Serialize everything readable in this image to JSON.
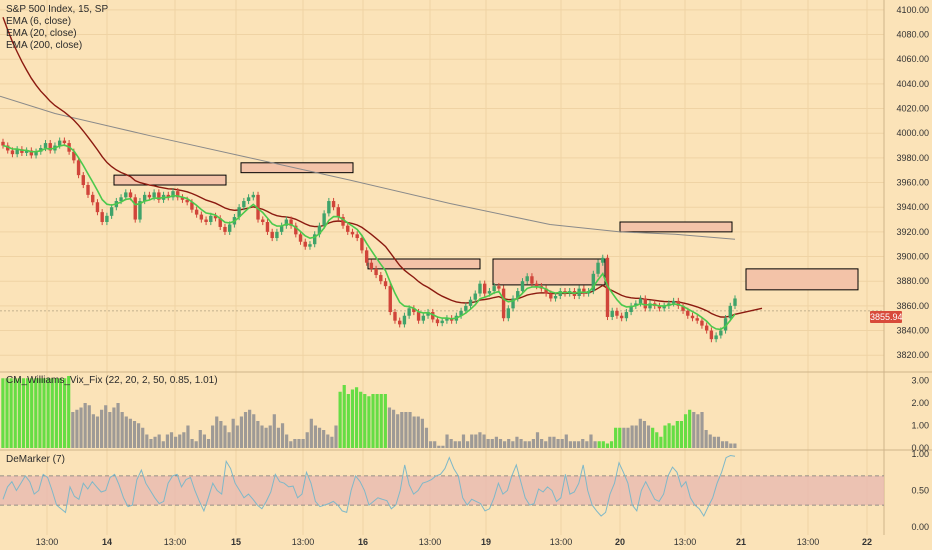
{
  "legend": {
    "symbol": "S&P 500 Index, 15, SP",
    "ema6": "EMA (6, close)",
    "ema20": "EMA (20, close)",
    "ema200": "EMA (200, close)"
  },
  "indicators": {
    "vix_fix": "CM_Williams_Vix_Fix (22, 20, 2, 50, 0.85, 1.01)",
    "demarker": "DeMarker (7)"
  },
  "last_price": "3855.94",
  "colors": {
    "background": "#fbe3b8",
    "up": "#3fa36a",
    "down": "#d0453a",
    "ema6": "#4cc94c",
    "ema20": "#8b1a10",
    "ema200": "#8a8a8a",
    "vix_high": "#66dd44",
    "vix_normal": "#9e9a96",
    "demarker_line": "#7fb8c8",
    "zone_fill": "#e8b9b0",
    "box_fill": "#f3c3a8"
  },
  "chart_data": [
    {
      "type": "candlestick",
      "title": "S&P 500 Index, 15, SP",
      "x_tick_labels": [
        "13:00",
        "14",
        "13:00",
        "15",
        "13:00",
        "16",
        "13:00",
        "19",
        "13:00",
        "20",
        "13:00",
        "21",
        "13:00",
        "22"
      ],
      "y_tick_labels": [
        "4100.00",
        "4080.00",
        "4060.00",
        "4040.00",
        "4020.00",
        "4000.00",
        "3980.00",
        "3960.00",
        "3940.00",
        "3920.00",
        "3900.00",
        "3880.00",
        "3860.00",
        "3840.00",
        "3820.00"
      ],
      "ylim": [
        3808,
        4108
      ],
      "grid": true,
      "last_price": 3855.94,
      "closes": [
        3990,
        3986,
        3983,
        3987,
        3984,
        3986,
        3982,
        3985,
        3988,
        3992,
        3986,
        3990,
        3994,
        3992,
        3985,
        3978,
        3966,
        3958,
        3950,
        3944,
        3936,
        3928,
        3933,
        3940,
        3945,
        3948,
        3952,
        3948,
        3930,
        3945,
        3950,
        3948,
        3952,
        3946,
        3950,
        3948,
        3953,
        3948,
        3946,
        3944,
        3938,
        3934,
        3930,
        3928,
        3933,
        3931,
        3924,
        3920,
        3926,
        3932,
        3940,
        3945,
        3948,
        3950,
        3930,
        3928,
        3920,
        3915,
        3920,
        3925,
        3930,
        3925,
        3918,
        3912,
        3908,
        3910,
        3918,
        3925,
        3935,
        3945,
        3940,
        3932,
        3925,
        3920,
        3918,
        3915,
        3905,
        3895,
        3890,
        3885,
        3880,
        3876,
        3855,
        3848,
        3845,
        3852,
        3858,
        3855,
        3848,
        3852,
        3855,
        3849,
        3846,
        3848,
        3850,
        3848,
        3852,
        3856,
        3860,
        3865,
        3870,
        3878,
        3870,
        3872,
        3876,
        3874,
        3850,
        3858,
        3866,
        3872,
        3880,
        3884,
        3878,
        3876,
        3874,
        3870,
        3866,
        3868,
        3872,
        3870,
        3872,
        3868,
        3874,
        3870,
        3872,
        3886,
        3895,
        3899,
        3851,
        3856,
        3852,
        3850,
        3855,
        3860,
        3862,
        3866,
        3858,
        3862,
        3860,
        3858,
        3860,
        3862,
        3864,
        3860,
        3856,
        3852,
        3850,
        3848,
        3844,
        3840,
        3833,
        3836,
        3840,
        3850,
        3860,
        3866
      ],
      "ema200": [
        [
          0,
          4030
        ],
        [
          55,
          4016
        ],
        [
          150,
          3998
        ],
        [
          250,
          3980
        ],
        [
          350,
          3962
        ],
        [
          450,
          3943
        ],
        [
          550,
          3926
        ],
        [
          620,
          3920
        ],
        [
          675,
          3918
        ],
        [
          735,
          3914
        ]
      ],
      "boxes": [
        {
          "x": [
            114,
            226
          ],
          "y": [
            3966,
            3958
          ],
          "outline": "#000"
        },
        {
          "x": [
            241,
            353
          ],
          "y": [
            3976,
            3968
          ],
          "outline": "#000"
        },
        {
          "x": [
            368,
            480
          ],
          "y": [
            3898,
            3890
          ],
          "outline": "#000"
        },
        {
          "x": [
            493,
            605
          ],
          "y": [
            3898,
            3877
          ],
          "outline": "#000"
        },
        {
          "x": [
            620,
            732
          ],
          "y": [
            3928,
            3920
          ],
          "outline": "#000"
        },
        {
          "x": [
            746,
            858
          ],
          "y": [
            3890,
            3873
          ],
          "outline": "#000"
        }
      ]
    },
    {
      "type": "bar",
      "title": "CM_Williams_Vix_Fix (22, 20, 2, 50, 0.85, 1.01)",
      "y_tick_labels": [
        "3.00",
        "2.00",
        "1.00",
        "0.00"
      ],
      "ylim": [
        0,
        3.2
      ],
      "values": [
        3.1,
        3.1,
        3.1,
        3.1,
        3.1,
        3.1,
        3.1,
        3.1,
        3.1,
        3.1,
        3.1,
        3.1,
        3.1,
        3.1,
        3.1,
        3.1,
        3.2,
        1.6,
        1.7,
        1.8,
        2.0,
        1.9,
        1.5,
        1.4,
        1.7,
        1.9,
        1.6,
        1.8,
        2.0,
        1.6,
        1.4,
        1.3,
        1.2,
        1.1,
        0.9,
        0.6,
        0.4,
        0.5,
        0.6,
        0.3,
        0.6,
        0.7,
        0.5,
        0.6,
        0.7,
        1.0,
        0.4,
        0.3,
        0.8,
        0.6,
        0.4,
        1.0,
        1.4,
        1.2,
        1.0,
        0.7,
        1.3,
        1.0,
        1.4,
        1.6,
        1.7,
        1.5,
        1.2,
        1.0,
        0.9,
        1.0,
        1.5,
        0.9,
        1.1,
        0.6,
        0.3,
        0.4,
        0.4,
        0.4,
        0.7,
        1.3,
        1.0,
        0.9,
        0.8,
        0.6,
        0.5,
        1.0,
        2.5,
        2.8,
        2.4,
        2.6,
        2.7,
        2.5,
        2.4,
        2.3,
        2.4,
        2.4,
        2.4,
        2.4,
        1.8,
        1.7,
        1.5,
        1.6,
        1.6,
        1.6,
        1.4,
        1.4,
        1.3,
        0.9,
        0.3,
        0.3,
        0.1,
        0.1,
        0.6,
        0.4,
        0.3,
        0.3,
        0.6,
        0.3,
        0.6,
        0.6,
        0.7,
        0.6,
        0.4,
        0.4,
        0.5,
        0.4,
        0.3,
        0.4,
        0.3,
        0.5,
        0.4,
        0.3,
        0.3,
        0.4,
        0.7,
        0.4,
        0.3,
        0.5,
        0.5,
        0.4,
        0.4,
        0.6,
        0.3,
        0.3,
        0.3,
        0.4,
        0.3,
        0.6,
        0.3,
        0.3,
        0.3,
        0.2,
        0.3,
        0.9,
        0.9,
        0.9,
        0.9,
        1.0,
        1.0,
        1.3,
        1.2,
        1.0,
        0.9,
        0.7,
        0.5,
        1.0,
        1.1,
        1.0,
        1.2,
        1.2,
        1.5,
        1.7,
        1.6,
        1.5,
        1.6,
        0.8,
        0.6,
        0.5,
        0.5,
        0.3,
        0.3,
        0.2,
        0.2
      ],
      "highlight": [
        0,
        1,
        2,
        3,
        4,
        5,
        6,
        7,
        8,
        9,
        10,
        11,
        12,
        13,
        14,
        15,
        16,
        82,
        83,
        84,
        85,
        86,
        87,
        88,
        89,
        90,
        91,
        92,
        93,
        145,
        146,
        147,
        148,
        149,
        150,
        158,
        159,
        160,
        161,
        162,
        163,
        164,
        165,
        166,
        167
      ]
    },
    {
      "type": "line",
      "title": "DeMarker (7)",
      "y_tick_labels": [
        "1.00",
        "0.50",
        "0.00"
      ],
      "ylim": [
        0,
        1
      ],
      "band": [
        0.3,
        0.7
      ],
      "values": [
        0.38,
        0.55,
        0.62,
        0.5,
        0.6,
        0.7,
        0.62,
        0.45,
        0.5,
        0.72,
        0.68,
        0.5,
        0.3,
        0.25,
        0.2,
        0.55,
        0.42,
        0.38,
        0.6,
        0.52,
        0.62,
        0.55,
        0.48,
        0.5,
        0.68,
        0.72,
        0.58,
        0.4,
        0.28,
        0.3,
        0.65,
        0.78,
        0.6,
        0.5,
        0.4,
        0.32,
        0.35,
        0.6,
        0.7,
        0.72,
        0.55,
        0.65,
        0.68,
        0.5,
        0.35,
        0.22,
        0.4,
        0.6,
        0.5,
        0.45,
        0.9,
        0.8,
        0.6,
        0.5,
        0.4,
        0.45,
        0.38,
        0.3,
        0.25,
        0.35,
        0.48,
        0.72,
        0.62,
        0.6,
        0.55,
        0.56,
        0.4,
        0.45,
        0.75,
        0.6,
        0.35,
        0.28,
        0.3,
        0.32,
        0.35,
        0.3,
        0.22,
        0.2,
        0.5,
        0.7,
        0.62,
        0.5,
        0.3,
        0.35,
        0.4,
        0.38,
        0.36,
        0.25,
        0.3,
        0.5,
        0.85,
        0.58,
        0.45,
        0.5,
        0.6,
        0.62,
        0.65,
        0.7,
        0.72,
        0.8,
        0.95,
        0.8,
        0.7,
        0.4,
        0.3,
        0.38,
        0.35,
        0.32,
        0.22,
        0.25,
        0.4,
        0.6,
        0.45,
        0.5,
        0.7,
        0.85,
        0.62,
        0.4,
        0.3,
        0.32,
        0.52,
        0.48,
        0.55,
        0.5,
        0.35,
        0.4,
        0.72,
        0.45,
        0.48,
        0.6,
        0.85,
        0.5,
        0.3,
        0.22,
        0.15,
        0.2,
        0.45,
        0.6,
        0.88,
        0.75,
        0.6,
        0.3,
        0.22,
        0.5,
        0.62,
        0.5,
        0.38,
        0.35,
        0.45,
        0.7,
        0.82,
        0.75,
        0.55,
        0.62,
        0.4,
        0.3,
        0.25,
        0.15,
        0.28,
        0.4,
        0.6,
        0.75,
        0.95,
        0.98,
        0.97
      ]
    }
  ]
}
